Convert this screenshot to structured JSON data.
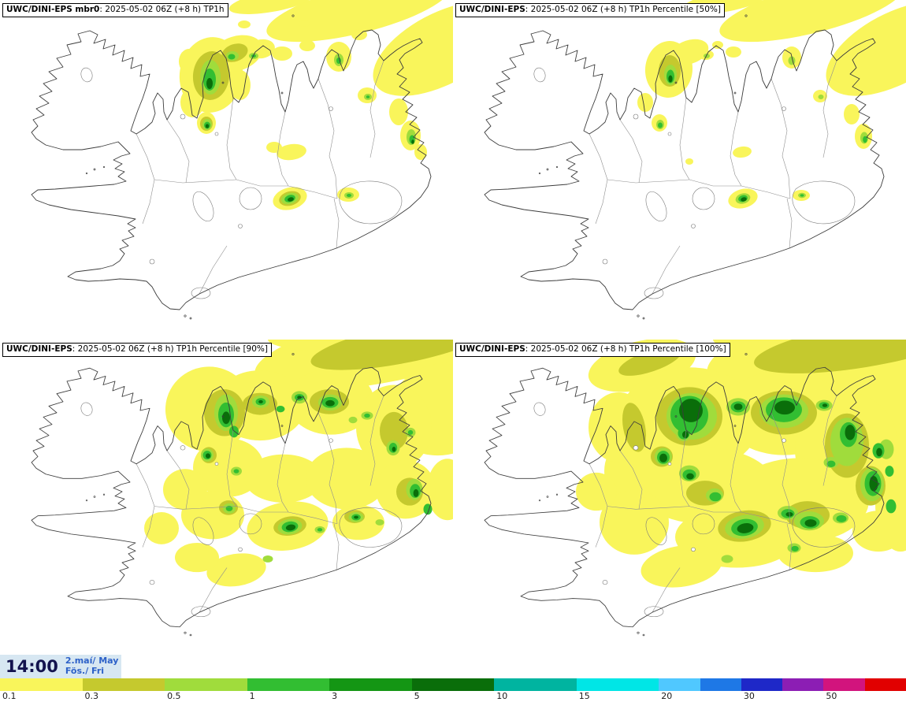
{
  "panels": [
    {
      "title_bold": "UWC/DINI-EPS mbr0",
      "title_rest": ": 2025-05-02 06Z (+8 h) TP1h"
    },
    {
      "title_bold": "UWC/DINI-EPS",
      "title_rest": ": 2025-05-02 06Z (+8 h) TP1h Percentile [50%]"
    },
    {
      "title_bold": "UWC/DINI-EPS",
      "title_rest": ": 2025-05-02 06Z (+8 h) TP1h Percentile [90%]"
    },
    {
      "title_bold": "UWC/DINI-EPS",
      "title_rest": ": 2025-05-02 06Z (+8 h) TP1h Percentile [100%]"
    }
  ],
  "footer": {
    "time": "14:00",
    "date_line1": "2.maí/ May",
    "date_line2": "Fös./ Fri"
  },
  "palette": {
    "yellow": "#f9f55b",
    "olive": "#c5c92e",
    "light_green": "#a0dc3c",
    "green": "#32be32",
    "dark_green": "#0a6e0a"
  },
  "colorbar": {
    "segments": [
      {
        "label": "0.1",
        "color": "#f9f55b",
        "width": 9.09
      },
      {
        "label": "0.3",
        "color": "#c5c92e",
        "width": 9.09
      },
      {
        "label": "0.5",
        "color": "#a0dc3c",
        "width": 9.09
      },
      {
        "label": "1",
        "color": "#32be32",
        "width": 9.09
      },
      {
        "label": "3",
        "color": "#149614",
        "width": 9.09
      },
      {
        "label": "5",
        "color": "#0a6e0a",
        "width": 9.09
      },
      {
        "label": "10",
        "color": "#00b4a0",
        "width": 9.09
      },
      {
        "label": "15",
        "color": "#00e6e6",
        "width": 9.09
      },
      {
        "label": "20",
        "color": "#50c8ff",
        "width": 4.546
      },
      {
        "label": "",
        "color": "#1e78e6",
        "width": 4.546
      },
      {
        "label": "30",
        "color": "#1e28c8",
        "width": 4.546
      },
      {
        "label": "",
        "color": "#8c1eb4",
        "width": 4.546
      },
      {
        "label": "50",
        "color": "#d2147d",
        "width": 4.546
      },
      {
        "label": "",
        "color": "#e10000",
        "width": 4.546
      }
    ]
  }
}
